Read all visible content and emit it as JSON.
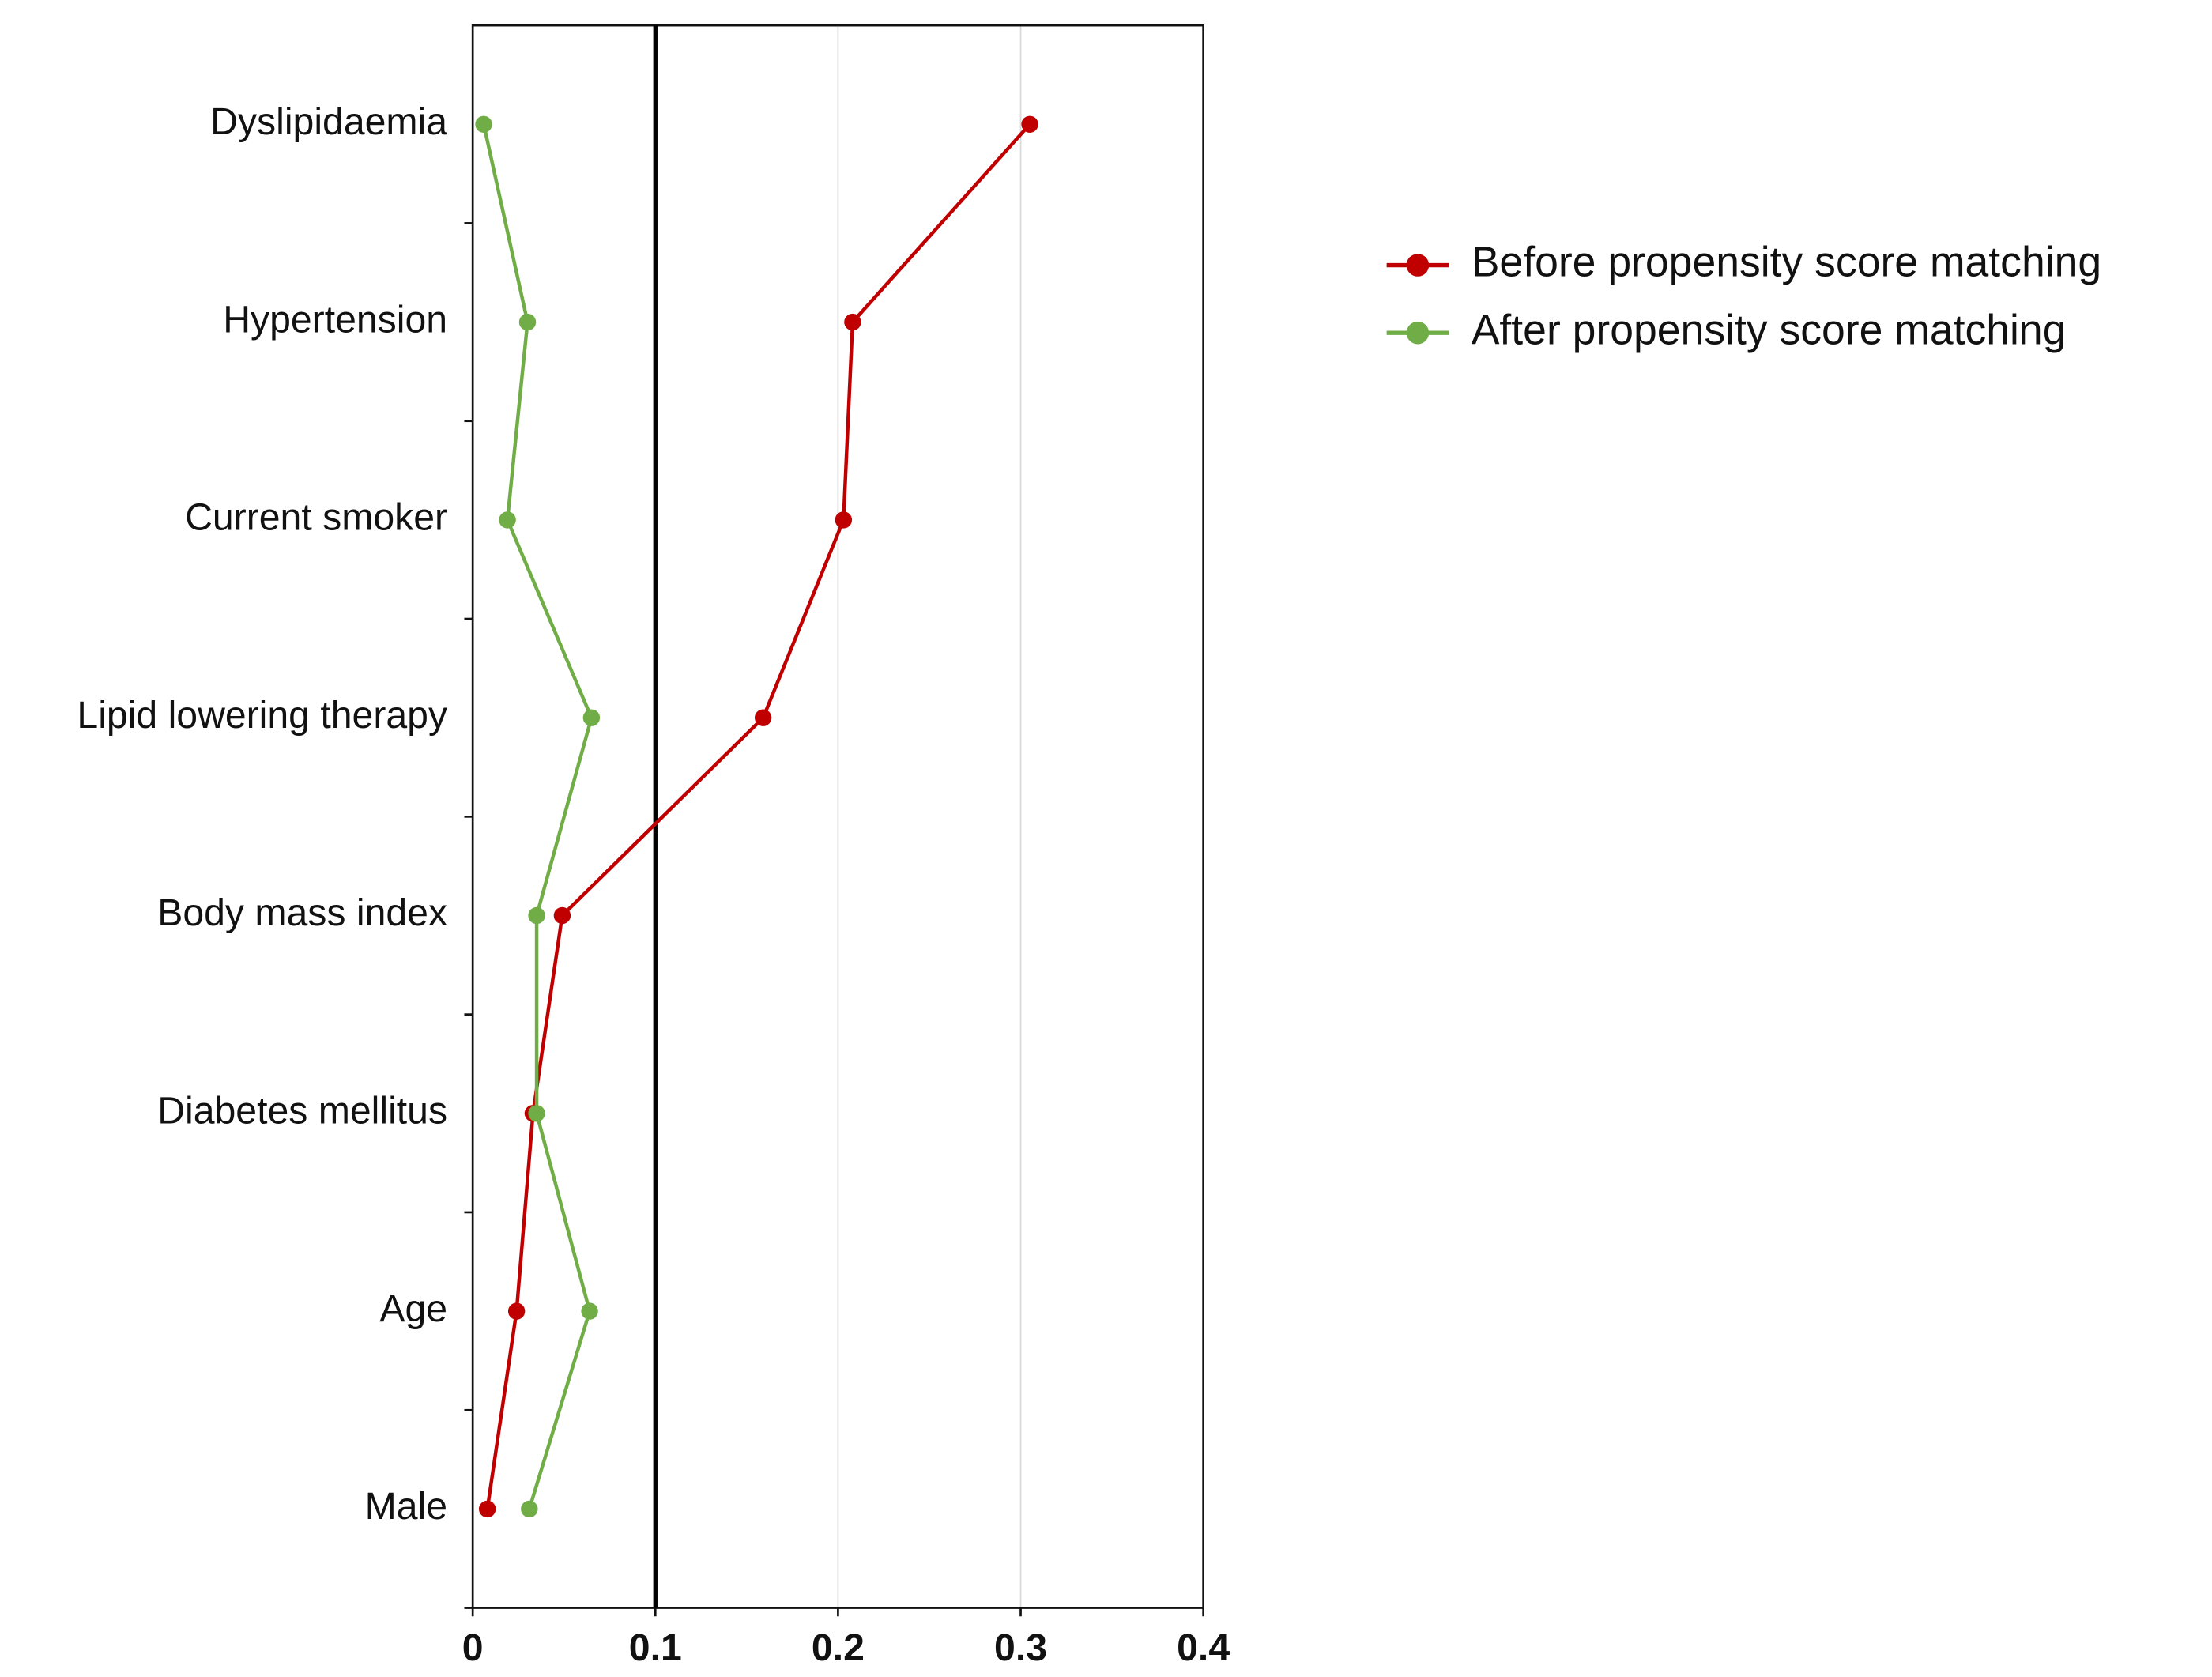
{
  "chart_data": {
    "type": "line",
    "orientation": "horizontal",
    "categories": [
      "Dyslipidaemia",
      "Hypertension",
      "Current smoker",
      "Lipid lowering therapy",
      "Body mass index",
      "Diabetes mellitus",
      "Age",
      "Male"
    ],
    "series": [
      {
        "name": "Before propensity score matching",
        "color": "#c00000",
        "values": [
          0.305,
          0.208,
          0.203,
          0.159,
          0.049,
          0.033,
          0.024,
          0.008
        ]
      },
      {
        "name": "After propensity score matching",
        "color": "#70ad47",
        "values": [
          0.006,
          0.03,
          0.019,
          0.065,
          0.035,
          0.035,
          0.064,
          0.031
        ]
      }
    ],
    "xlim": [
      0,
      0.4
    ],
    "xticks": [
      0,
      0.1,
      0.2,
      0.3,
      0.4
    ],
    "reference_line": 0.1,
    "grid": true,
    "legend": "top-right"
  }
}
